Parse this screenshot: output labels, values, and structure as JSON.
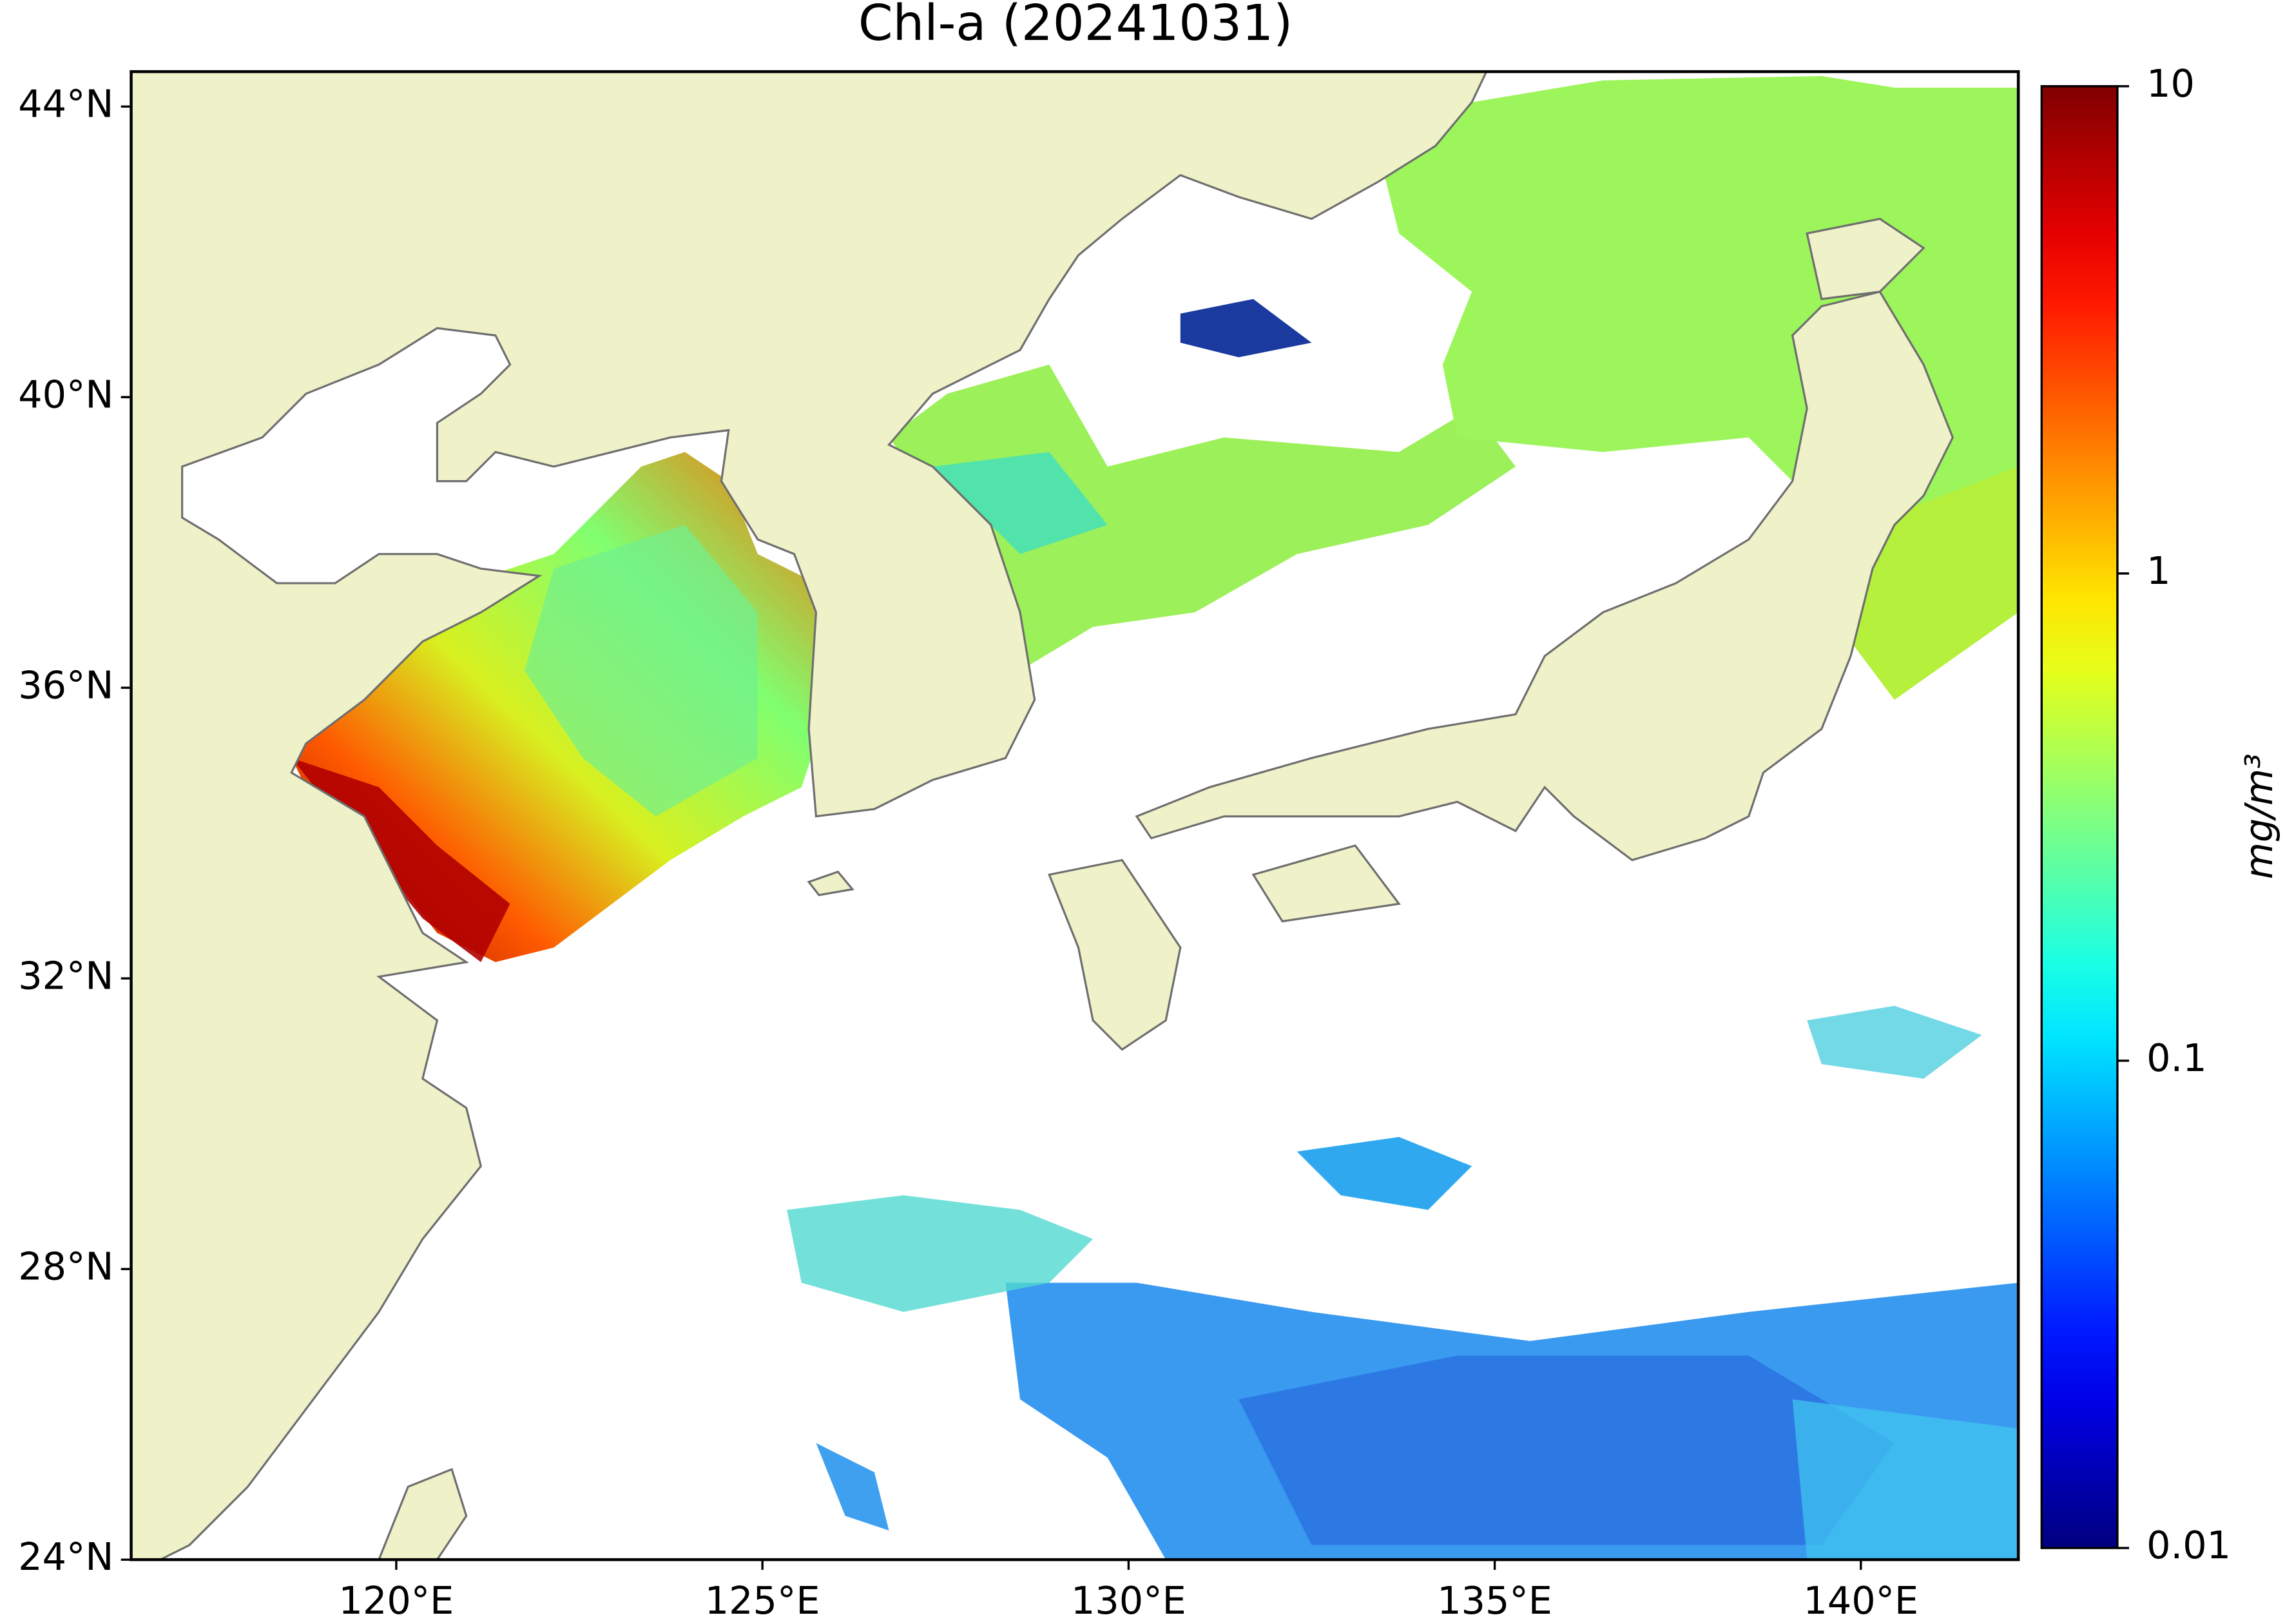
{
  "chart_data": {
    "type": "map",
    "title": "Chl-a (20241031)",
    "xlim": [
      116.38,
      142.15
    ],
    "ylim": [
      24,
      44.48
    ],
    "xticks": [
      {
        "value": 120,
        "label": "120°E"
      },
      {
        "value": 125,
        "label": "125°E"
      },
      {
        "value": 130,
        "label": "130°E"
      },
      {
        "value": 135,
        "label": "135°E"
      },
      {
        "value": 140,
        "label": "140°E"
      }
    ],
    "yticks": [
      {
        "value": 24,
        "label": "24°N"
      },
      {
        "value": 28,
        "label": "28°N"
      },
      {
        "value": 32,
        "label": "32°N"
      },
      {
        "value": 36,
        "label": "36°N"
      },
      {
        "value": 40,
        "label": "40°N"
      },
      {
        "value": 44,
        "label": "44°N"
      }
    ],
    "colorbar": {
      "label": "mg/m³",
      "clim": [
        0.01,
        10
      ],
      "log_scale": true,
      "colormap": "jet",
      "ticks": [
        0.01,
        0.1,
        1,
        10
      ]
    }
  }
}
